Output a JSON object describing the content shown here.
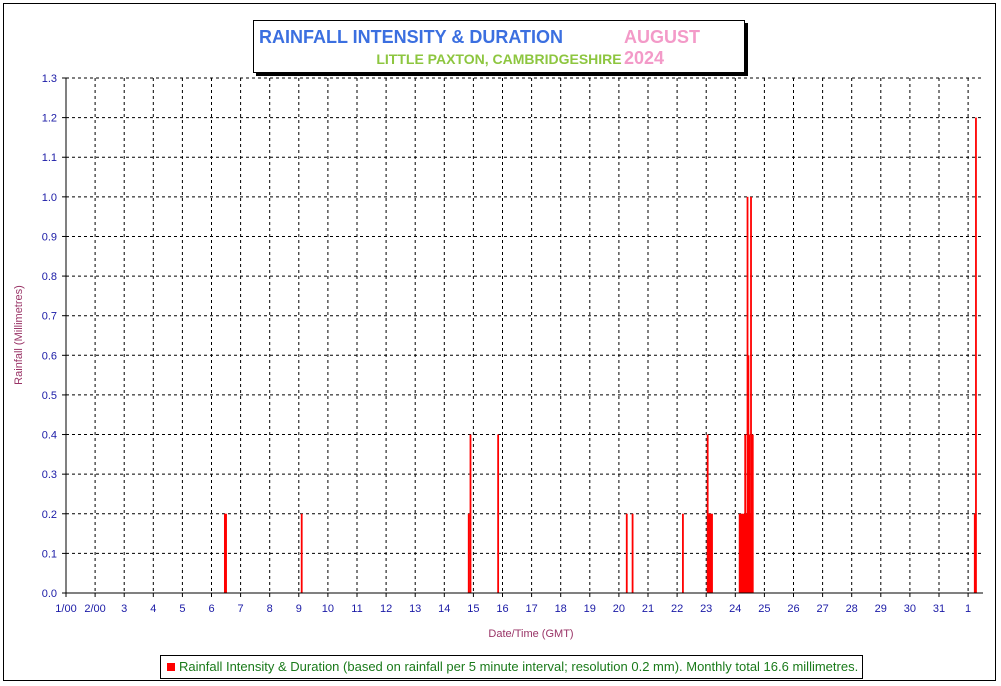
{
  "chart_data": {
    "type": "bar",
    "title": "RAINFALL INTENSITY & DURATION",
    "title_period": "AUGUST 2024",
    "subtitle": "LITTLE PAXTON, CAMBRIDGESHIRE",
    "xlabel": "Date/Time (GMT)",
    "ylabel": "Rainfall (Millimetres)",
    "ylim": [
      0,
      1.3
    ],
    "xlim": [
      1,
      32.35
    ],
    "grid": true,
    "y_ticks": [
      "0.0",
      "0.1",
      "0.2",
      "0.3",
      "0.4",
      "0.5",
      "0.6",
      "0.7",
      "0.8",
      "0.9",
      "1.0",
      "1.1",
      "1.2",
      "1.3"
    ],
    "x_ticks": [
      "1/00",
      "2/00",
      "3",
      "4",
      "5",
      "6",
      "7",
      "8",
      "9",
      "10",
      "11",
      "12",
      "13",
      "14",
      "15",
      "16",
      "17",
      "18",
      "19",
      "20",
      "21",
      "22",
      "23",
      "24",
      "25",
      "26",
      "27",
      "28",
      "29",
      "30",
      "31",
      "1"
    ],
    "legend_position": "bottom",
    "series": [
      {
        "name": "Rainfall Intensity & Duration (based on rainfall per 5 minute interval; resolution 0.2 mm). Monthly total 16.6 millimetres.",
        "color": "#ff0000",
        "points": [
          {
            "x": 6.46,
            "y": 0.2
          },
          {
            "x": 6.5,
            "y": 0.2
          },
          {
            "x": 9.1,
            "y": 0.2
          },
          {
            "x": 14.84,
            "y": 0.2
          },
          {
            "x": 14.9,
            "y": 0.4
          },
          {
            "x": 15.85,
            "y": 0.4
          },
          {
            "x": 20.27,
            "y": 0.2
          },
          {
            "x": 20.47,
            "y": 0.2
          },
          {
            "x": 22.2,
            "y": 0.2
          },
          {
            "x": 23.05,
            "y": 0.4
          },
          {
            "x": 23.08,
            "y": 0.2
          },
          {
            "x": 23.12,
            "y": 0.2
          },
          {
            "x": 23.16,
            "y": 0.2
          },
          {
            "x": 23.2,
            "y": 0.2
          },
          {
            "x": 24.15,
            "y": 0.2
          },
          {
            "x": 24.19,
            "y": 0.2
          },
          {
            "x": 24.23,
            "y": 0.2
          },
          {
            "x": 24.27,
            "y": 0.2
          },
          {
            "x": 24.31,
            "y": 0.2
          },
          {
            "x": 24.34,
            "y": 0.4
          },
          {
            "x": 24.38,
            "y": 0.2
          },
          {
            "x": 24.42,
            "y": 1.0
          },
          {
            "x": 24.45,
            "y": 0.6
          },
          {
            "x": 24.48,
            "y": 0.4
          },
          {
            "x": 24.51,
            "y": 0.2
          },
          {
            "x": 24.54,
            "y": 1.0
          },
          {
            "x": 24.57,
            "y": 0.4
          },
          {
            "x": 24.6,
            "y": 0.4
          },
          {
            "x": 32.23,
            "y": 0.2
          },
          {
            "x": 32.27,
            "y": 1.2
          }
        ]
      }
    ]
  }
}
